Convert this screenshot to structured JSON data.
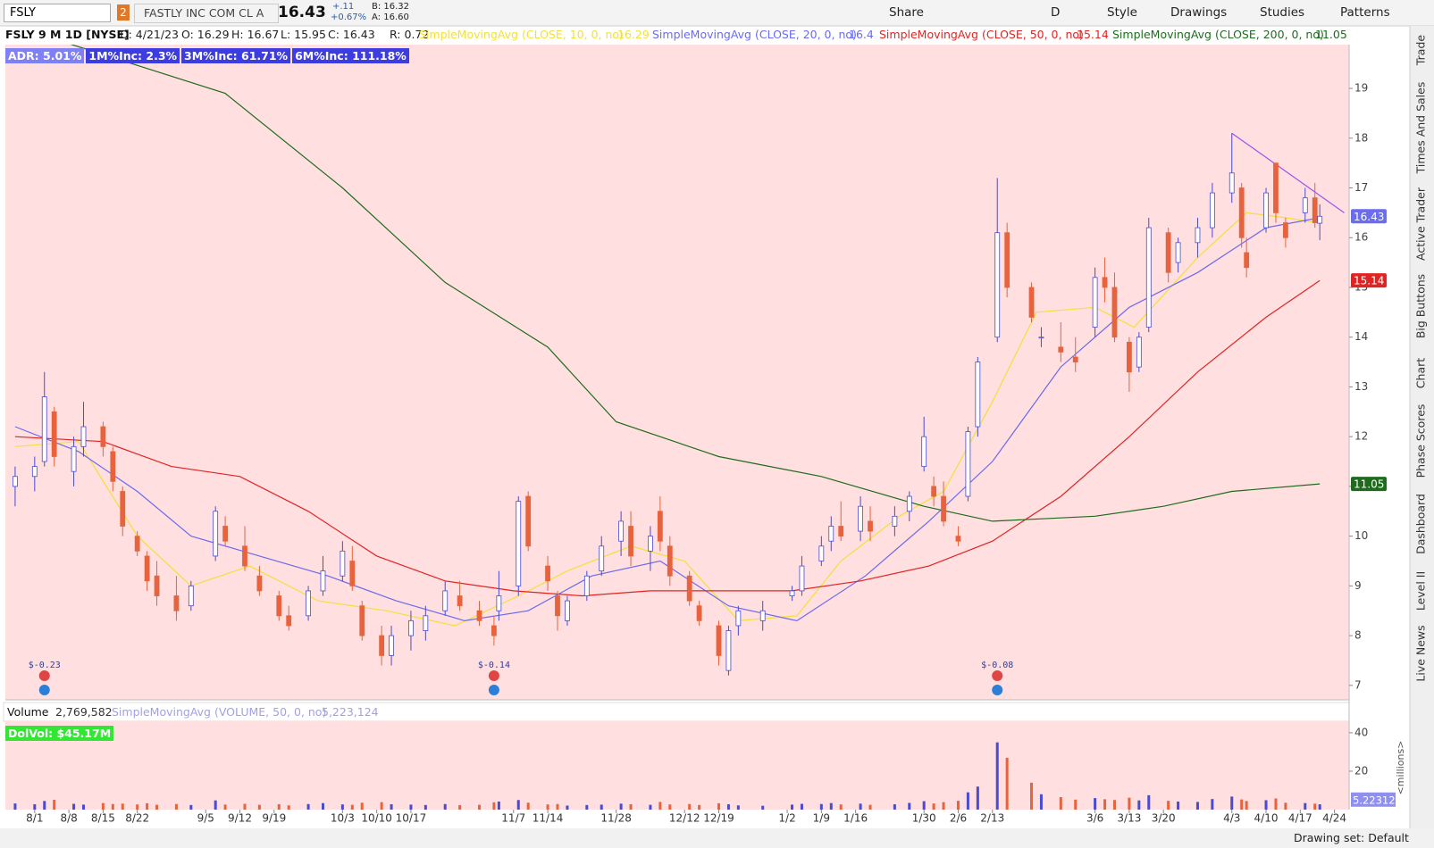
{
  "toolbar": {
    "symbol": "FSLY",
    "link_number": "2",
    "company": "FASTLY INC COM CL A",
    "last": "16.43",
    "change": "+.11",
    "change_pct": "+0.67%",
    "bid": "B: 16.32",
    "ask": "A: 16.60",
    "buttons": [
      "Share",
      "D",
      "Style",
      "Drawings",
      "Studies",
      "Patterns"
    ]
  },
  "chart_header": {
    "title": "FSLY 9 M 1D [NYSE]",
    "fields": [
      "D: 4/21/23",
      "O: 16.29",
      "H: 16.67",
      "L: 15.95",
      "C: 16.43",
      "R: 0.72"
    ]
  },
  "badges": [
    {
      "text": "ADR: 5.01%",
      "color": "#7f7ff6"
    },
    {
      "text": "1M%Inc: 2.3%",
      "color": "#3c3ce0"
    },
    {
      "text": "3M%Inc: 61.71%",
      "color": "#3c3ce0"
    },
    {
      "text": "6M%Inc: 111.18%",
      "color": "#3c3ce0"
    }
  ],
  "chart_data": {
    "type": "candlestick",
    "up_color": "#4a4ad6",
    "down_color": "#e8633d",
    "background": "#ffdfdf",
    "candles": {
      "x": [
        "7/28",
        "8/1",
        "8/3",
        "8/5",
        "8/9",
        "8/11",
        "8/15",
        "8/17",
        "8/19",
        "8/22",
        "8/24",
        "8/26",
        "8/30",
        "9/2",
        "9/7",
        "9/9",
        "9/13",
        "9/16",
        "9/20",
        "9/22",
        "9/26",
        "9/29",
        "10/3",
        "10/5",
        "10/7",
        "10/11",
        "10/13",
        "10/17",
        "10/20",
        "10/24",
        "10/27",
        "10/31",
        "11/3",
        "11/4",
        "11/8",
        "11/10",
        "11/14",
        "11/16",
        "11/18",
        "11/22",
        "11/25",
        "11/29",
        "12/1",
        "12/5",
        "12/7",
        "12/9",
        "12/13",
        "12/15",
        "12/19",
        "12/21",
        "12/23",
        "12/28",
        "1/3",
        "1/5",
        "1/9",
        "1/11",
        "1/13",
        "1/17",
        "1/19",
        "1/24",
        "1/27",
        "1/30",
        "2/1",
        "2/3",
        "2/6",
        "2/8",
        "2/10",
        "2/14",
        "2/16",
        "2/21",
        "2/23",
        "2/27",
        "3/2",
        "3/6",
        "3/8",
        "3/10",
        "3/13",
        "3/15",
        "3/17",
        "3/21",
        "3/23",
        "3/27",
        "3/30",
        "4/3",
        "4/5",
        "4/6",
        "4/10",
        "4/12",
        "4/14",
        "4/18",
        "4/20",
        "4/21"
      ],
      "open": [
        11.0,
        11.2,
        11.5,
        12.5,
        11.3,
        11.8,
        12.2,
        11.7,
        10.9,
        10.0,
        9.6,
        9.2,
        8.8,
        8.6,
        9.6,
        10.2,
        9.8,
        9.2,
        8.8,
        8.4,
        8.4,
        8.9,
        9.2,
        9.5,
        8.6,
        8.0,
        7.6,
        8.0,
        8.1,
        8.5,
        8.8,
        8.5,
        8.2,
        8.5,
        9.0,
        10.8,
        9.4,
        8.8,
        8.3,
        8.8,
        9.3,
        9.9,
        10.2,
        9.7,
        10.5,
        9.8,
        9.2,
        8.6,
        8.2,
        7.3,
        8.2,
        8.3,
        8.8,
        8.9,
        9.5,
        9.9,
        10.2,
        10.1,
        10.3,
        10.2,
        10.5,
        11.4,
        11.0,
        10.8,
        10.0,
        10.8,
        12.2,
        14.0,
        16.1,
        15.0,
        14.0,
        13.8,
        13.6,
        14.2,
        15.2,
        15.0,
        13.9,
        13.4,
        14.2,
        16.1,
        15.5,
        15.9,
        16.2,
        16.9,
        17.0,
        15.7,
        16.2,
        17.5,
        16.3,
        16.5,
        16.8,
        16.29
      ],
      "high": [
        11.4,
        11.6,
        13.3,
        12.6,
        12.0,
        12.7,
        12.3,
        11.8,
        11.0,
        10.1,
        9.7,
        9.5,
        9.2,
        9.1,
        10.6,
        10.4,
        10.2,
        9.4,
        8.9,
        8.6,
        9.0,
        9.6,
        9.9,
        9.8,
        8.7,
        8.2,
        8.2,
        8.5,
        8.6,
        9.1,
        9.1,
        8.7,
        8.4,
        9.3,
        10.8,
        10.9,
        9.6,
        8.9,
        8.8,
        9.3,
        10.0,
        10.5,
        10.5,
        10.2,
        10.8,
        10.0,
        9.3,
        8.7,
        8.3,
        8.2,
        8.6,
        8.7,
        9.0,
        9.6,
        10.0,
        10.4,
        10.7,
        10.8,
        10.6,
        10.6,
        10.9,
        12.4,
        11.2,
        11.1,
        10.2,
        12.2,
        13.6,
        17.2,
        16.3,
        15.1,
        14.2,
        14.3,
        14.0,
        15.4,
        15.6,
        15.3,
        14.0,
        14.1,
        16.4,
        16.2,
        16.0,
        16.4,
        17.1,
        18.1,
        17.1,
        16.0,
        17.0,
        17.5,
        16.4,
        17.0,
        17.1,
        16.67
      ],
      "low": [
        10.6,
        10.9,
        11.4,
        11.4,
        11.0,
        11.6,
        11.6,
        10.9,
        10.0,
        9.6,
        8.9,
        8.6,
        8.3,
        8.5,
        9.5,
        9.8,
        9.3,
        8.8,
        8.3,
        8.1,
        8.3,
        8.8,
        9.1,
        8.9,
        7.9,
        7.4,
        7.4,
        7.7,
        7.9,
        8.4,
        8.5,
        8.2,
        7.8,
        8.3,
        8.8,
        9.7,
        8.9,
        8.1,
        8.2,
        8.7,
        9.2,
        9.6,
        9.4,
        9.3,
        9.7,
        9.0,
        8.6,
        8.2,
        7.4,
        7.2,
        8.0,
        8.1,
        8.7,
        8.8,
        9.4,
        9.7,
        9.9,
        9.9,
        9.9,
        10.0,
        10.3,
        11.3,
        10.6,
        10.2,
        9.8,
        10.7,
        12.0,
        13.9,
        14.8,
        14.3,
        13.8,
        13.5,
        13.3,
        14.0,
        14.7,
        13.9,
        12.9,
        13.3,
        14.1,
        15.1,
        15.3,
        15.6,
        16.0,
        16.7,
        15.8,
        15.2,
        16.1,
        16.3,
        15.8,
        16.3,
        16.2,
        15.95
      ],
      "close": [
        11.2,
        11.4,
        12.8,
        11.6,
        11.8,
        12.2,
        11.8,
        11.1,
        10.2,
        9.7,
        9.1,
        8.8,
        8.5,
        9.0,
        10.5,
        9.9,
        9.4,
        8.9,
        8.4,
        8.2,
        8.9,
        9.3,
        9.7,
        9.0,
        8.0,
        7.6,
        8.0,
        8.3,
        8.4,
        8.9,
        8.6,
        8.3,
        8.0,
        8.8,
        10.7,
        9.8,
        9.1,
        8.4,
        8.7,
        9.2,
        9.8,
        10.3,
        9.6,
        10.0,
        9.9,
        9.2,
        8.7,
        8.3,
        7.6,
        8.1,
        8.5,
        8.5,
        8.9,
        9.4,
        9.8,
        10.2,
        10.0,
        10.6,
        10.1,
        10.4,
        10.8,
        12.0,
        10.8,
        10.3,
        9.9,
        12.1,
        13.5,
        16.1,
        15.0,
        14.4,
        14.0,
        13.7,
        13.5,
        15.2,
        15.0,
        14.0,
        13.3,
        14.0,
        16.2,
        15.3,
        15.9,
        16.2,
        16.9,
        17.3,
        16.0,
        15.4,
        16.9,
        16.5,
        16.0,
        16.8,
        16.3,
        16.43
      ]
    },
    "studies": [
      {
        "name": "SimpleMovingAvg (CLOSE, 10, 0, no)",
        "color": "#f2e03a",
        "badge": false,
        "x": [
          "7/28",
          "8/10",
          "8/22",
          "9/2",
          "9/14",
          "9/28",
          "10/12",
          "10/26",
          "11/8",
          "11/18",
          "12/1",
          "12/12",
          "12/23",
          "1/4",
          "1/13",
          "1/25",
          "2/3",
          "2/13",
          "2/22",
          "3/6",
          "3/14",
          "3/27",
          "4/6",
          "4/14",
          "4/21"
        ],
        "values": [
          11.8,
          11.9,
          10.0,
          9.0,
          9.4,
          8.7,
          8.5,
          8.2,
          8.8,
          9.3,
          9.8,
          9.5,
          8.3,
          8.4,
          9.5,
          10.4,
          10.9,
          12.7,
          14.5,
          14.6,
          14.2,
          15.6,
          16.5,
          16.4,
          16.29
        ]
      },
      {
        "name": "SimpleMovingAvg (CLOSE, 20, 0, no)",
        "color": "#6a6af0",
        "badge": false,
        "x": [
          "7/28",
          "8/10",
          "8/22",
          "9/2",
          "9/16",
          "9/30",
          "10/14",
          "10/28",
          "11/10",
          "11/23",
          "12/7",
          "12/21",
          "1/4",
          "1/18",
          "1/31",
          "2/13",
          "2/27",
          "3/13",
          "3/27",
          "4/10",
          "4/21"
        ],
        "values": [
          12.2,
          11.7,
          10.9,
          10.0,
          9.6,
          9.2,
          8.7,
          8.3,
          8.5,
          9.2,
          9.5,
          8.6,
          8.3,
          9.2,
          10.3,
          11.5,
          13.4,
          14.6,
          15.3,
          16.2,
          16.4
        ]
      },
      {
        "name": "SimpleMovingAvg (CLOSE, 50, 0, no)",
        "color": "#e02424",
        "badge": true,
        "x": [
          "7/28",
          "8/15",
          "8/29",
          "9/12",
          "9/26",
          "10/10",
          "10/24",
          "11/7",
          "11/21",
          "12/5",
          "12/19",
          "1/3",
          "1/17",
          "1/31",
          "2/13",
          "2/27",
          "3/13",
          "3/27",
          "4/10",
          "4/21"
        ],
        "values": [
          12.0,
          11.9,
          11.4,
          11.2,
          10.5,
          9.6,
          9.1,
          8.9,
          8.8,
          8.9,
          8.9,
          8.9,
          9.1,
          9.4,
          9.9,
          10.8,
          12.0,
          13.3,
          14.4,
          15.14
        ]
      },
      {
        "name": "SimpleMovingAvg (CLOSE, 200, 0, no)",
        "color": "#1e6b1e",
        "badge": true,
        "x": [
          "8/8",
          "9/9",
          "10/3",
          "10/24",
          "11/14",
          "11/28",
          "12/19",
          "1/9",
          "1/30",
          "2/13",
          "3/6",
          "3/20",
          "4/3",
          "4/21"
        ],
        "values": [
          19.9,
          18.9,
          17.0,
          15.1,
          13.8,
          12.3,
          11.6,
          11.2,
          10.6,
          10.3,
          10.4,
          10.6,
          10.9,
          11.05
        ]
      }
    ],
    "trendline": {
      "color": "#9a55ee",
      "x": [
        "4/3",
        "4/26"
      ],
      "values": [
        18.1,
        16.5
      ]
    },
    "earnings": [
      {
        "x": "8/3",
        "label": "$-0.23"
      },
      {
        "x": "11/3",
        "label": "$-0.14"
      },
      {
        "x": "2/14",
        "label": "$-0.08"
      }
    ],
    "xlim": [
      "7/26",
      "4/27"
    ],
    "xticks": [
      "8/1",
      "8/8",
      "8/15",
      "8/22",
      "9/5",
      "9/12",
      "9/19",
      "10/3",
      "10/10",
      "10/17",
      "11/7",
      "11/14",
      "11/28",
      "12/12",
      "12/19",
      "1/2",
      "1/9",
      "1/16",
      "1/30",
      "2/6",
      "2/13",
      "3/6",
      "3/13",
      "3/20",
      "4/3",
      "4/10",
      "4/17",
      "4/24"
    ],
    "ylim": [
      6.71,
      19.88
    ],
    "yticks": [
      7,
      8,
      9,
      10,
      11,
      12,
      13,
      14,
      15,
      16,
      17,
      18,
      19
    ],
    "price_badge_color": "#6c6cf0",
    "volume": {
      "label": "Volume",
      "value": "2,769,582",
      "study": "SimpleMovingAvg (VOLUME, 50, 0, no)",
      "study_value": "5,223,124",
      "dolvol": "DolVol: $45.17M",
      "dolvol_color": "#33e633",
      "unit": "<millions>",
      "avg": 5.22312,
      "avg_color": "#8f8ff0",
      "values": [
        3.2,
        2.8,
        4.5,
        5.1,
        3.0,
        2.6,
        3.4,
        2.9,
        3.1,
        2.7,
        3.3,
        2.5,
        2.9,
        2.4,
        4.8,
        2.6,
        3.0,
        2.5,
        2.8,
        2.2,
        2.9,
        3.4,
        2.7,
        2.5,
        3.6,
        3.9,
        2.8,
        2.6,
        2.4,
        2.9,
        2.3,
        2.5,
        3.8,
        4.2,
        5.0,
        3.6,
        2.7,
        2.9,
        2.1,
        2.4,
        2.6,
        3.1,
        2.8,
        2.5,
        4.0,
        2.7,
        2.9,
        2.4,
        3.3,
        2.8,
        2.2,
        2.0,
        2.6,
        3.0,
        2.9,
        3.4,
        2.7,
        3.1,
        2.5,
        2.8,
        3.5,
        4.4,
        3.2,
        3.9,
        4.6,
        9.0,
        12.0,
        35.0,
        27.0,
        14.0,
        8.0,
        6.5,
        5.2,
        6.0,
        5.4,
        5.0,
        6.2,
        4.8,
        7.5,
        4.6,
        4.2,
        4.0,
        5.5,
        6.8,
        5.3,
        4.5,
        4.9,
        5.8,
        3.6,
        3.4,
        3.1,
        2.77
      ],
      "ylim": [
        0,
        46
      ],
      "yticks": [
        20,
        40
      ]
    }
  },
  "side_tabs": [
    "Trade",
    "Times And Sales",
    "Active Trader",
    "Big Buttons",
    "Chart",
    "Phase Scores",
    "Dashboard",
    "Level II",
    "Live News"
  ],
  "footer": {
    "drawing_set": "Drawing set: Default"
  }
}
